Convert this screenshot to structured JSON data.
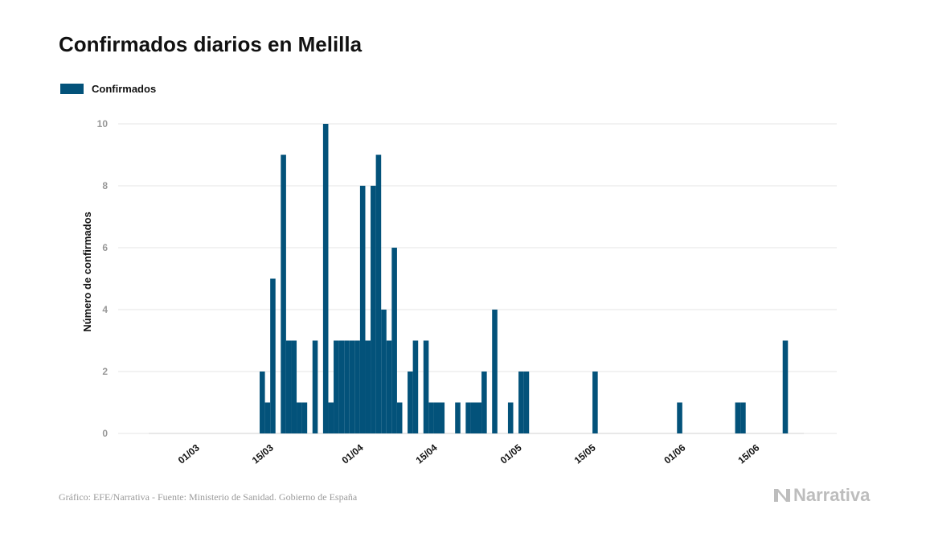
{
  "title": "Confirmados diarios en Melilla",
  "legend_label": "Confirmados",
  "source": "Gráfico: EFE/Narrativa - Fuente: Ministerio de Sanidad. Gobierno de España",
  "brand": "Narrativa",
  "colors": {
    "bar": "#03527a",
    "grid": "#e6e6e6",
    "tick": "#999999",
    "text": "#111111",
    "brand": "#bdbdbd"
  },
  "chart_data": {
    "type": "bar",
    "title": "Confirmados diarios en Melilla",
    "ylabel": "Número de confirmados",
    "xlabel": "",
    "ylim": [
      0,
      10
    ],
    "yticks": [
      0,
      2,
      4,
      6,
      8,
      10
    ],
    "grid": true,
    "legend": {
      "position": "top-left",
      "entries": [
        "Confirmados"
      ]
    },
    "date_range": [
      "2020-02-22",
      "2020-06-25"
    ],
    "xticks": [
      {
        "label": "01/03",
        "date": "2020-03-01"
      },
      {
        "label": "15/03",
        "date": "2020-03-15"
      },
      {
        "label": "01/04",
        "date": "2020-04-01"
      },
      {
        "label": "15/04",
        "date": "2020-04-15"
      },
      {
        "label": "01/05",
        "date": "2020-05-01"
      },
      {
        "label": "15/05",
        "date": "2020-05-15"
      },
      {
        "label": "01/06",
        "date": "2020-06-01"
      },
      {
        "label": "15/06",
        "date": "2020-06-15"
      }
    ],
    "series": [
      {
        "name": "Confirmados",
        "data": [
          [
            "2020-03-14",
            2
          ],
          [
            "2020-03-15",
            1
          ],
          [
            "2020-03-16",
            5
          ],
          [
            "2020-03-18",
            9
          ],
          [
            "2020-03-19",
            3
          ],
          [
            "2020-03-20",
            3
          ],
          [
            "2020-03-21",
            1
          ],
          [
            "2020-03-22",
            1
          ],
          [
            "2020-03-24",
            3
          ],
          [
            "2020-03-26",
            10
          ],
          [
            "2020-03-27",
            1
          ],
          [
            "2020-03-28",
            3
          ],
          [
            "2020-03-29",
            3
          ],
          [
            "2020-03-30",
            3
          ],
          [
            "2020-03-31",
            3
          ],
          [
            "2020-04-01",
            3
          ],
          [
            "2020-04-02",
            8
          ],
          [
            "2020-04-03",
            3
          ],
          [
            "2020-04-04",
            8
          ],
          [
            "2020-04-05",
            9
          ],
          [
            "2020-04-06",
            4
          ],
          [
            "2020-04-07",
            3
          ],
          [
            "2020-04-08",
            6
          ],
          [
            "2020-04-09",
            1
          ],
          [
            "2020-04-11",
            2
          ],
          [
            "2020-04-12",
            3
          ],
          [
            "2020-04-14",
            3
          ],
          [
            "2020-04-15",
            1
          ],
          [
            "2020-04-16",
            1
          ],
          [
            "2020-04-17",
            1
          ],
          [
            "2020-04-20",
            1
          ],
          [
            "2020-04-22",
            1
          ],
          [
            "2020-04-23",
            1
          ],
          [
            "2020-04-24",
            1
          ],
          [
            "2020-04-25",
            2
          ],
          [
            "2020-04-27",
            4
          ],
          [
            "2020-04-30",
            1
          ],
          [
            "2020-05-02",
            2
          ],
          [
            "2020-05-03",
            2
          ],
          [
            "2020-05-16",
            2
          ],
          [
            "2020-06-01",
            1
          ],
          [
            "2020-06-12",
            1
          ],
          [
            "2020-06-13",
            1
          ],
          [
            "2020-06-21",
            3
          ]
        ]
      }
    ]
  }
}
